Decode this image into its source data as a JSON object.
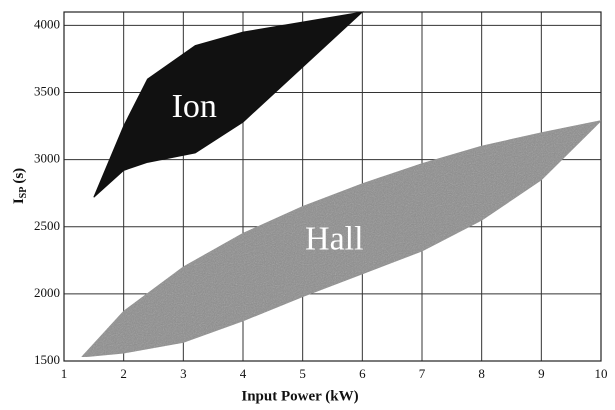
{
  "chart_data": {
    "type": "area_band",
    "xlabel": "Input Power (kW)",
    "ylabel": "I",
    "ylabel_sub": "SP",
    "ylabel_unit": "(s)",
    "xlim": [
      1,
      10
    ],
    "xticks": [
      1,
      2,
      3,
      4,
      5,
      6,
      7,
      8,
      9,
      10
    ],
    "ylim": [
      1500,
      4100
    ],
    "yticks": [
      1500,
      2000,
      2500,
      3000,
      3500,
      4000
    ],
    "grid": true,
    "series": [
      {
        "name": "Ion",
        "color": "#111111",
        "x": [
          1.5,
          2,
          2.4,
          3.2,
          4,
          6
        ],
        "upper": [
          2720,
          3250,
          3600,
          3850,
          3950,
          4100
        ],
        "lower": [
          2720,
          2920,
          2980,
          3050,
          3280,
          4100
        ]
      },
      {
        "name": "Hall",
        "color": "#8c8c8c",
        "x": [
          1.3,
          2,
          3,
          4,
          5,
          6,
          7,
          8,
          9,
          10
        ],
        "upper": [
          1530,
          1870,
          2200,
          2450,
          2650,
          2820,
          2970,
          3100,
          3200,
          3290
        ],
        "lower": [
          1530,
          1560,
          1640,
          1800,
          1980,
          2150,
          2320,
          2550,
          2850,
          3290
        ]
      }
    ]
  }
}
